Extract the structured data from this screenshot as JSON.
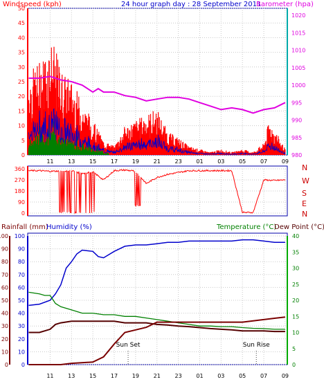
{
  "header": {
    "left_label": "Windspeed (kph)",
    "title": "24 hour graph day : 28 September 2011",
    "right_label": "Barometer (hpa)"
  },
  "colors": {
    "windspeed": "#ff0000",
    "barometer": "#e000e0",
    "blue": "#0000cc",
    "green": "#008000",
    "temperature": "#008000",
    "dewpoint": "#550000",
    "rain": "#7a0000",
    "humidity": "#0000cc",
    "axis": "#000000",
    "dir_labels": "#cc0000"
  },
  "time_labels": [
    "11",
    "13",
    "15",
    "17",
    "19",
    "21",
    "23",
    "01",
    "03",
    "05",
    "07",
    "09"
  ],
  "chart_data": [
    {
      "type": "area",
      "name": "wind-barometer",
      "left_axis": {
        "label": "Windspeed (kph)",
        "ticks": [
          0,
          5,
          10,
          15,
          20,
          25,
          30,
          35,
          40,
          45,
          50
        ],
        "ylim": [
          0,
          50
        ]
      },
      "right_axis": {
        "label": "Barometer (hpa)",
        "ticks": [
          980,
          985,
          990,
          995,
          1000,
          1005,
          1010,
          1015,
          1020
        ],
        "ylim": [
          980,
          1022
        ]
      },
      "x_ticks": [
        "11",
        "13",
        "15",
        "17",
        "19",
        "21",
        "23",
        "01",
        "03",
        "05",
        "07",
        "09"
      ],
      "grid": true,
      "barometer": {
        "x": [
          9,
          10,
          11,
          12,
          13,
          14,
          15,
          15.5,
          16,
          17,
          18,
          19,
          20,
          21,
          22,
          23,
          24,
          25,
          26,
          27,
          28,
          29,
          30,
          31,
          32,
          33
        ],
        "y": [
          1002,
          1002,
          1002.5,
          1001.5,
          1001,
          1000,
          998,
          999,
          998,
          998,
          997,
          996.5,
          995.5,
          996,
          996.5,
          996.5,
          996,
          995,
          994,
          993,
          993.5,
          993,
          992,
          993,
          993.5,
          995
        ]
      },
      "windspeed_gust_peaks": {
        "x": [
          9,
          10,
          10.5,
          11,
          11.5,
          12,
          12.5,
          13,
          13.5,
          14,
          15,
          16,
          17,
          18,
          19,
          20,
          21,
          22,
          23,
          24,
          25,
          26,
          27,
          28,
          29,
          30,
          31,
          31.5,
          32,
          33
        ],
        "y": [
          28,
          32,
          35,
          40,
          36,
          30,
          27,
          26,
          22,
          18,
          12,
          5,
          3,
          10,
          12,
          14,
          16,
          8,
          6,
          3,
          2,
          1,
          2,
          1,
          2,
          1,
          4,
          12,
          9,
          2
        ]
      }
    },
    {
      "type": "line",
      "name": "wind-direction",
      "left_axis": {
        "ticks": [
          0,
          90,
          180,
          270,
          360
        ],
        "ylim": [
          0,
          360
        ]
      },
      "right_labels": [
        "N",
        "W",
        "S",
        "E",
        "N"
      ],
      "x_ticks": [
        "11",
        "13",
        "15",
        "17",
        "19",
        "21",
        "23",
        "01",
        "03",
        "05",
        "07",
        "09"
      ],
      "direction": {
        "x": [
          9,
          10,
          11,
          12,
          13,
          14,
          15,
          16,
          17,
          18,
          19,
          20,
          21,
          22,
          23,
          24,
          25,
          26,
          27,
          28,
          29,
          30,
          31,
          32,
          33
        ],
        "y": [
          345,
          345,
          340,
          342,
          345,
          320,
          335,
          270,
          345,
          350,
          340,
          240,
          290,
          315,
          330,
          345,
          345,
          345,
          345,
          345,
          5,
          5,
          270,
          265,
          270
        ]
      }
    },
    {
      "type": "line",
      "name": "temp-humidity-rain",
      "rain_axis": {
        "label": "Rainfall (mm)",
        "ticks": [
          0,
          10,
          20,
          30,
          40,
          50,
          60,
          70,
          80,
          90,
          100
        ]
      },
      "humidity_axis": {
        "label": "Humidity (%)",
        "ticks": [
          0,
          10,
          20,
          30,
          40,
          50,
          60,
          70,
          80,
          90,
          100
        ]
      },
      "temperature_axis": {
        "label": "Temperature (°C)",
        "ticks": [
          0,
          5,
          10,
          15,
          20,
          25,
          30,
          35,
          40
        ],
        "ylim": [
          0,
          40
        ]
      },
      "dewpoint_label": "Dew Point (°C)",
      "x_ticks": [
        "11",
        "13",
        "15",
        "17",
        "19",
        "21",
        "23",
        "01",
        "03",
        "05",
        "07",
        "09"
      ],
      "annotations": [
        {
          "text": "Sun Set",
          "x": 18.3
        },
        {
          "text": "Sun Rise",
          "x": 30.3
        }
      ],
      "series": [
        {
          "name": "Humidity (%)",
          "x": [
            9,
            10,
            11,
            11.5,
            12,
            12.5,
            13,
            13.5,
            14,
            15,
            15.5,
            16,
            17,
            18,
            19,
            20,
            21,
            22,
            23,
            24,
            25,
            26,
            27,
            28,
            29,
            30,
            31,
            32,
            33
          ],
          "y": [
            46,
            47,
            50,
            55,
            62,
            75,
            80,
            86,
            89,
            88,
            84,
            83,
            88,
            92,
            93,
            93,
            94,
            95,
            95,
            96,
            96,
            96,
            96,
            96,
            97,
            97,
            96,
            95,
            95
          ]
        },
        {
          "name": "Temperature (°C)",
          "x": [
            9,
            10,
            10.5,
            11,
            11.5,
            12,
            13,
            14,
            15,
            16,
            17,
            18,
            19,
            20,
            21,
            22,
            23,
            24,
            25,
            26,
            27,
            28,
            29,
            30,
            31,
            32,
            33
          ],
          "y": [
            22.5,
            22,
            21.5,
            21.5,
            19,
            18,
            17,
            16,
            16,
            15.5,
            15.5,
            15,
            15,
            14.5,
            14,
            13.5,
            13,
            12.5,
            12,
            12,
            11.8,
            11.8,
            11.5,
            11.3,
            11.2,
            11,
            11
          ]
        },
        {
          "name": "Dew Point (°C)",
          "x": [
            9,
            10,
            11,
            11.5,
            12,
            13,
            14,
            15,
            16,
            17,
            18,
            19,
            20,
            21,
            22,
            23,
            24,
            25,
            26,
            27,
            28,
            29,
            30,
            31,
            32,
            33
          ],
          "y": [
            10,
            10,
            11,
            12.5,
            13,
            13.5,
            13.5,
            13.5,
            13.5,
            13.5,
            13,
            13,
            13,
            12.5,
            12.3,
            12,
            11.8,
            11.5,
            11.2,
            11,
            10.8,
            10.5,
            10.5,
            10.5,
            10.3,
            10.3
          ]
        },
        {
          "name": "Rainfall (mm)",
          "x": [
            9,
            12,
            13,
            15,
            16,
            17,
            18,
            19,
            20,
            21,
            22,
            23,
            24,
            25,
            26,
            27,
            28,
            29,
            30,
            31,
            32,
            33
          ],
          "y": [
            0,
            0,
            1,
            2,
            6,
            16,
            25,
            27,
            29,
            33,
            33,
            33,
            33,
            33,
            33,
            33,
            33,
            33,
            34,
            35,
            36,
            37
          ]
        }
      ]
    }
  ]
}
